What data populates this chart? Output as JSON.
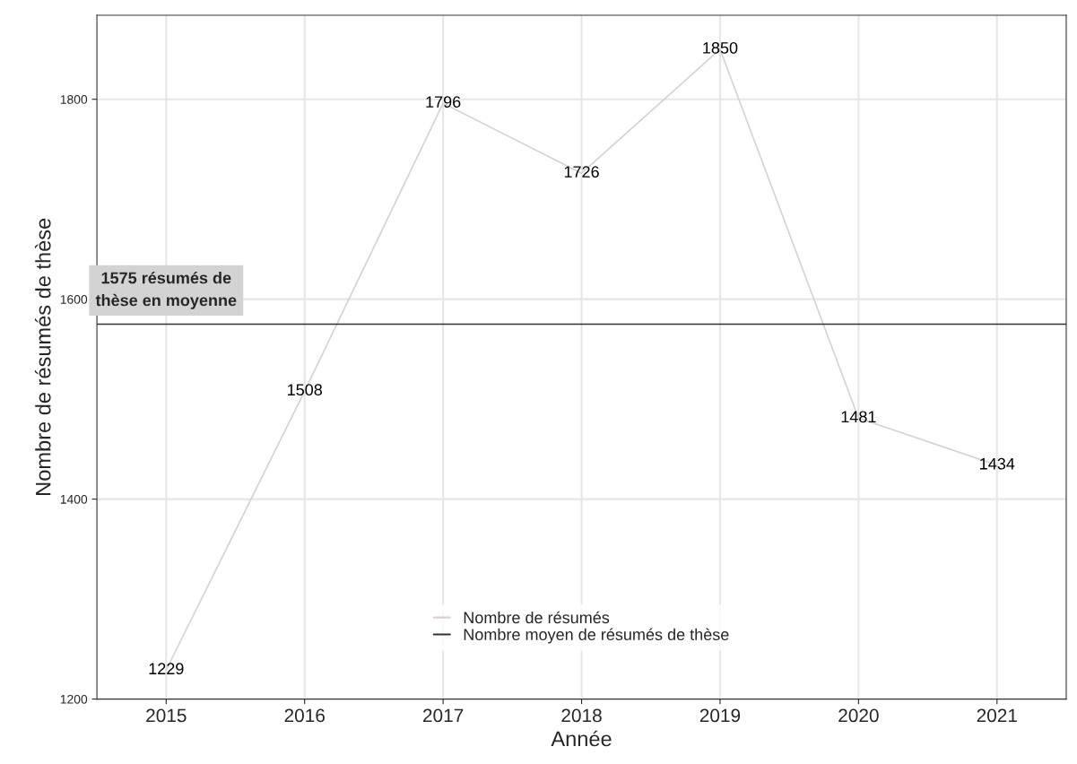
{
  "chart_data": {
    "type": "line",
    "xlabel": "Année",
    "ylabel": "Nombre de résumés de thèse",
    "categories": [
      "2015",
      "2016",
      "2017",
      "2018",
      "2019",
      "2020",
      "2021"
    ],
    "series": [
      {
        "name": "Nombre de résumés",
        "color": "#dccfcf",
        "values": [
          1229,
          1508,
          1796,
          1726,
          1850,
          1481,
          1434
        ]
      }
    ],
    "ref_lines": [
      {
        "axis": "y",
        "value": 1575,
        "label": "Nombre moyen de résumés de thèse",
        "color": "#333333"
      }
    ],
    "annotations": [
      {
        "text": "1575 résumés de\nthèse en moyenne",
        "x": "2015",
        "y": 1575
      }
    ],
    "ylim": [
      1200,
      1884
    ],
    "yticks": [
      1200,
      1400,
      1600,
      1800
    ],
    "data_labels": true,
    "grid": true,
    "legend": "bottom",
    "line_style": "solid",
    "marker": "none"
  }
}
